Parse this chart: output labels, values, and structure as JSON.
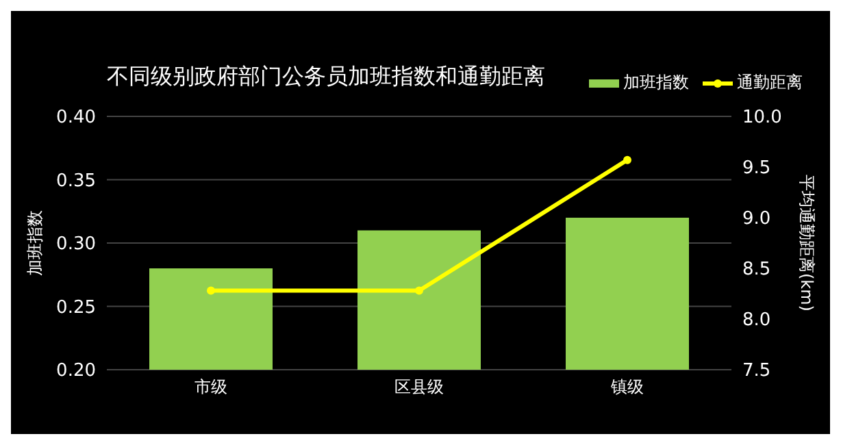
{
  "chart_data": {
    "type": "bar",
    "title": "不同级别政府部门公务员加班指数和通勤距离",
    "ylabel": "加班指数",
    "y2label": "平均通勤距离(km)",
    "categories": [
      "市级",
      "区县级",
      "镇级"
    ],
    "series": [
      {
        "name": "加班指数",
        "color": "#92d050",
        "values": [
          0.28,
          0.31,
          0.32
        ]
      },
      {
        "name": "通勤距离",
        "type": "line",
        "axis": "y2",
        "color": "#ffff00",
        "values": [
          8.28,
          8.28,
          9.57
        ]
      }
    ],
    "ylim": [
      0.2,
      0.4
    ],
    "yticks": [
      {
        "value": 0.2,
        "label": "0.20"
      },
      {
        "value": 0.25,
        "label": "0.25"
      },
      {
        "value": 0.3,
        "label": "0.30"
      },
      {
        "value": 0.35,
        "label": "0.35"
      },
      {
        "value": 0.4,
        "label": "0.40"
      }
    ],
    "y2lim": [
      7.5,
      10
    ],
    "y2ticks": [
      {
        "value": 7.5,
        "label": "7.5"
      },
      {
        "value": 8,
        "label": "8.0"
      },
      {
        "value": 8.5,
        "label": "8.5"
      },
      {
        "value": 9,
        "label": "9.0"
      },
      {
        "value": 9.5,
        "label": "9.5"
      },
      {
        "value": 10,
        "label": "10.0"
      }
    ],
    "grid": "y",
    "legend": "top right",
    "marker": "circle"
  }
}
